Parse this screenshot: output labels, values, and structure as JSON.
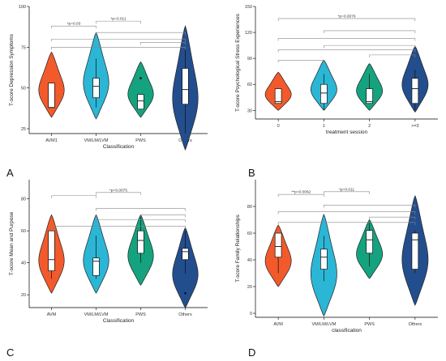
{
  "colors": [
    "#f25a2b",
    "#2bb6d6",
    "#15a37f",
    "#234e8e"
  ],
  "chart_data": [
    {
      "type": "violin",
      "panel_label": "A",
      "xlabel": "Classification",
      "ylabel": "T-score Depression Symptoms",
      "categories": [
        "AVM1",
        "VM/LM/LVM",
        "PWS",
        "Others"
      ],
      "ylim": [
        22,
        100
      ],
      "yticks": [
        25,
        50,
        75,
        100
      ],
      "violins": [
        {
          "min": 32,
          "max": 72,
          "q1": 38,
          "median": 38,
          "q3": 53,
          "whisker_low": 38,
          "whisker_high": 53
        },
        {
          "min": 31,
          "max": 84,
          "q1": 44,
          "median": 51,
          "q3": 56,
          "whisker_low": 38,
          "whisker_high": 68
        },
        {
          "min": 32,
          "max": 66,
          "q1": 37,
          "median": 42,
          "q3": 46,
          "whisker_low": 37,
          "whisker_high": 46,
          "outliers": [
            56
          ]
        },
        {
          "min": 12,
          "max": 88,
          "q1": 40,
          "median": 49,
          "q3": 62,
          "whisker_low": 22,
          "whisker_high": 74
        }
      ],
      "brackets": [
        {
          "from": 0,
          "to": 1,
          "y": 88,
          "label": "*p=0.03"
        },
        {
          "from": 1,
          "to": 2,
          "y": 91,
          "label": "*p=0.011"
        },
        {
          "from": 1,
          "to": 3,
          "y": 84,
          "label": ""
        },
        {
          "from": 0,
          "to": 3,
          "y": 80,
          "label": ""
        },
        {
          "from": 0,
          "to": 3,
          "y": 75,
          "label": ""
        },
        {
          "from": 2,
          "to": 3,
          "y": 78,
          "label": ""
        }
      ]
    },
    {
      "type": "violin",
      "panel_label": "B",
      "xlabel": "treatment session",
      "ylabel": "T-score Psychological Stress Experiences",
      "categories": [
        "0",
        "1",
        "2",
        ">=3"
      ],
      "ylim": [
        20,
        150
      ],
      "yticks": [
        30,
        60,
        90,
        120,
        150
      ],
      "violins": [
        {
          "min": 30,
          "max": 74,
          "q1": 38,
          "median": 40,
          "q3": 55,
          "whisker_low": 38,
          "whisker_high": 55
        },
        {
          "min": 30,
          "max": 88,
          "q1": 38,
          "median": 50,
          "q3": 60,
          "whisker_low": 30,
          "whisker_high": 72
        },
        {
          "min": 30,
          "max": 84,
          "q1": 38,
          "median": 40,
          "q3": 55,
          "whisker_low": 38,
          "whisker_high": 72
        },
        {
          "min": 28,
          "max": 104,
          "q1": 38,
          "median": 55,
          "q3": 67,
          "whisker_low": 30,
          "whisker_high": 77
        }
      ],
      "brackets": [
        {
          "from": 0,
          "to": 3,
          "y": 136,
          "label": "*p=0.0076"
        },
        {
          "from": 1,
          "to": 3,
          "y": 122,
          "label": ""
        },
        {
          "from": 0,
          "to": 3,
          "y": 113,
          "label": ""
        },
        {
          "from": 1,
          "to": 3,
          "y": 105,
          "label": ""
        },
        {
          "from": 0,
          "to": 3,
          "y": 100,
          "label": ""
        },
        {
          "from": 2,
          "to": 3,
          "y": 94,
          "label": ""
        },
        {
          "from": 0,
          "to": 1,
          "y": 88,
          "label": ""
        }
      ]
    },
    {
      "type": "violin",
      "panel_label": "C",
      "xlabel": "Classification",
      "ylabel": "T-score Mean and Purpose",
      "categories": [
        "AVM",
        "VM/LM/LVM",
        "PWS",
        "Others"
      ],
      "ylim": [
        12,
        92
      ],
      "yticks": [
        20,
        40,
        60,
        80
      ],
      "violins": [
        {
          "min": 21,
          "max": 70,
          "q1": 35,
          "median": 42,
          "q3": 60,
          "whisker_low": 30,
          "whisker_high": 60
        },
        {
          "min": 21,
          "max": 70,
          "q1": 32,
          "median": 41,
          "q3": 43,
          "whisker_low": 30,
          "whisker_high": 57
        },
        {
          "min": 26,
          "max": 70,
          "q1": 46,
          "median": 54,
          "q3": 60,
          "whisker_low": 40,
          "whisker_high": 70
        },
        {
          "min": 12,
          "max": 62,
          "q1": 42,
          "median": 47,
          "q3": 49,
          "whisker_low": 33,
          "whisker_high": 60,
          "outliers": [
            21
          ]
        }
      ],
      "brackets": [
        {
          "from": 0,
          "to": 1,
          "y": 82,
          "label": ""
        },
        {
          "from": 1,
          "to": 2,
          "y": 84,
          "label": "*p=0.0075"
        },
        {
          "from": 1,
          "to": 3,
          "y": 74,
          "label": ""
        },
        {
          "from": 2,
          "to": 3,
          "y": 70,
          "label": ""
        },
        {
          "from": 1,
          "to": 3,
          "y": 67,
          "label": ""
        },
        {
          "from": 0,
          "to": 3,
          "y": 63,
          "label": ""
        }
      ]
    },
    {
      "type": "violin",
      "panel_label": "D",
      "xlabel": "classification",
      "ylabel": "T-score Family Relationships",
      "categories": [
        "AVM",
        "VM/LM/LVM",
        "PWS",
        "Others"
      ],
      "ylim": [
        -3,
        100
      ],
      "yticks": [
        0,
        20,
        40,
        60,
        80
      ],
      "violins": [
        {
          "min": 20,
          "max": 66,
          "q1": 42,
          "median": 50,
          "q3": 60,
          "whisker_low": 30,
          "whisker_high": 60
        },
        {
          "min": -2,
          "max": 74,
          "q1": 33,
          "median": 42,
          "q3": 48,
          "whisker_low": 24,
          "whisker_high": 58
        },
        {
          "min": 26,
          "max": 70,
          "q1": 45,
          "median": 55,
          "q3": 62,
          "whisker_low": 35,
          "whisker_high": 68
        },
        {
          "min": 6,
          "max": 88,
          "q1": 33,
          "median": 55,
          "q3": 60,
          "whisker_low": 30,
          "whisker_high": 62
        }
      ],
      "brackets": [
        {
          "from": 0,
          "to": 1,
          "y": 89,
          "label": "**p=0.0062"
        },
        {
          "from": 1,
          "to": 2,
          "y": 91,
          "label": "*p=0.011"
        },
        {
          "from": 1,
          "to": 3,
          "y": 81,
          "label": ""
        },
        {
          "from": 0,
          "to": 3,
          "y": 76,
          "label": ""
        },
        {
          "from": 2,
          "to": 3,
          "y": 72,
          "label": ""
        },
        {
          "from": 0,
          "to": 3,
          "y": 68,
          "label": ""
        }
      ]
    }
  ]
}
